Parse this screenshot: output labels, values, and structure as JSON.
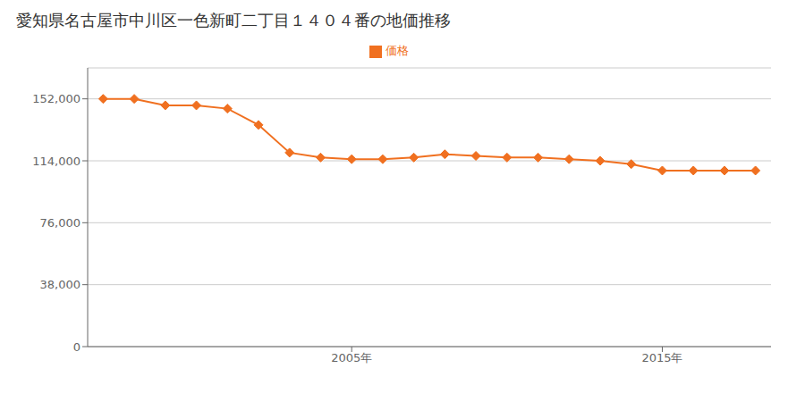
{
  "chart_data": {
    "type": "line",
    "title": "愛知県名古屋市中川区一色新町二丁目１４０４番の地価推移",
    "x": [
      1997,
      1998,
      1999,
      2000,
      2001,
      2002,
      2003,
      2004,
      2005,
      2006,
      2007,
      2008,
      2009,
      2010,
      2011,
      2012,
      2013,
      2014,
      2015,
      2016,
      2017,
      2018
    ],
    "series": [
      {
        "name": "価格",
        "color": "#f07020",
        "marker": "diamond",
        "values": [
          152000,
          152000,
          148000,
          148000,
          146000,
          136000,
          119000,
          116000,
          115000,
          115000,
          116000,
          118000,
          117000,
          116000,
          116000,
          115000,
          114000,
          112000,
          108000,
          108000,
          108000,
          108000
        ]
      }
    ],
    "xlim": [
      1996.5,
      2018.5
    ],
    "xticks": [
      {
        "value": 2005,
        "label": "2005年"
      },
      {
        "value": 2015,
        "label": "2015年"
      }
    ],
    "ylim": [
      0,
      171000
    ],
    "yticks": [
      0,
      {
        "value": 38000,
        "label": "38,000"
      },
      {
        "value": 76000,
        "label": "76,000"
      },
      {
        "value": 114000,
        "label": "114,000"
      },
      {
        "value": 152000,
        "label": "152,000"
      }
    ],
    "grid": "y",
    "legend": "top"
  }
}
